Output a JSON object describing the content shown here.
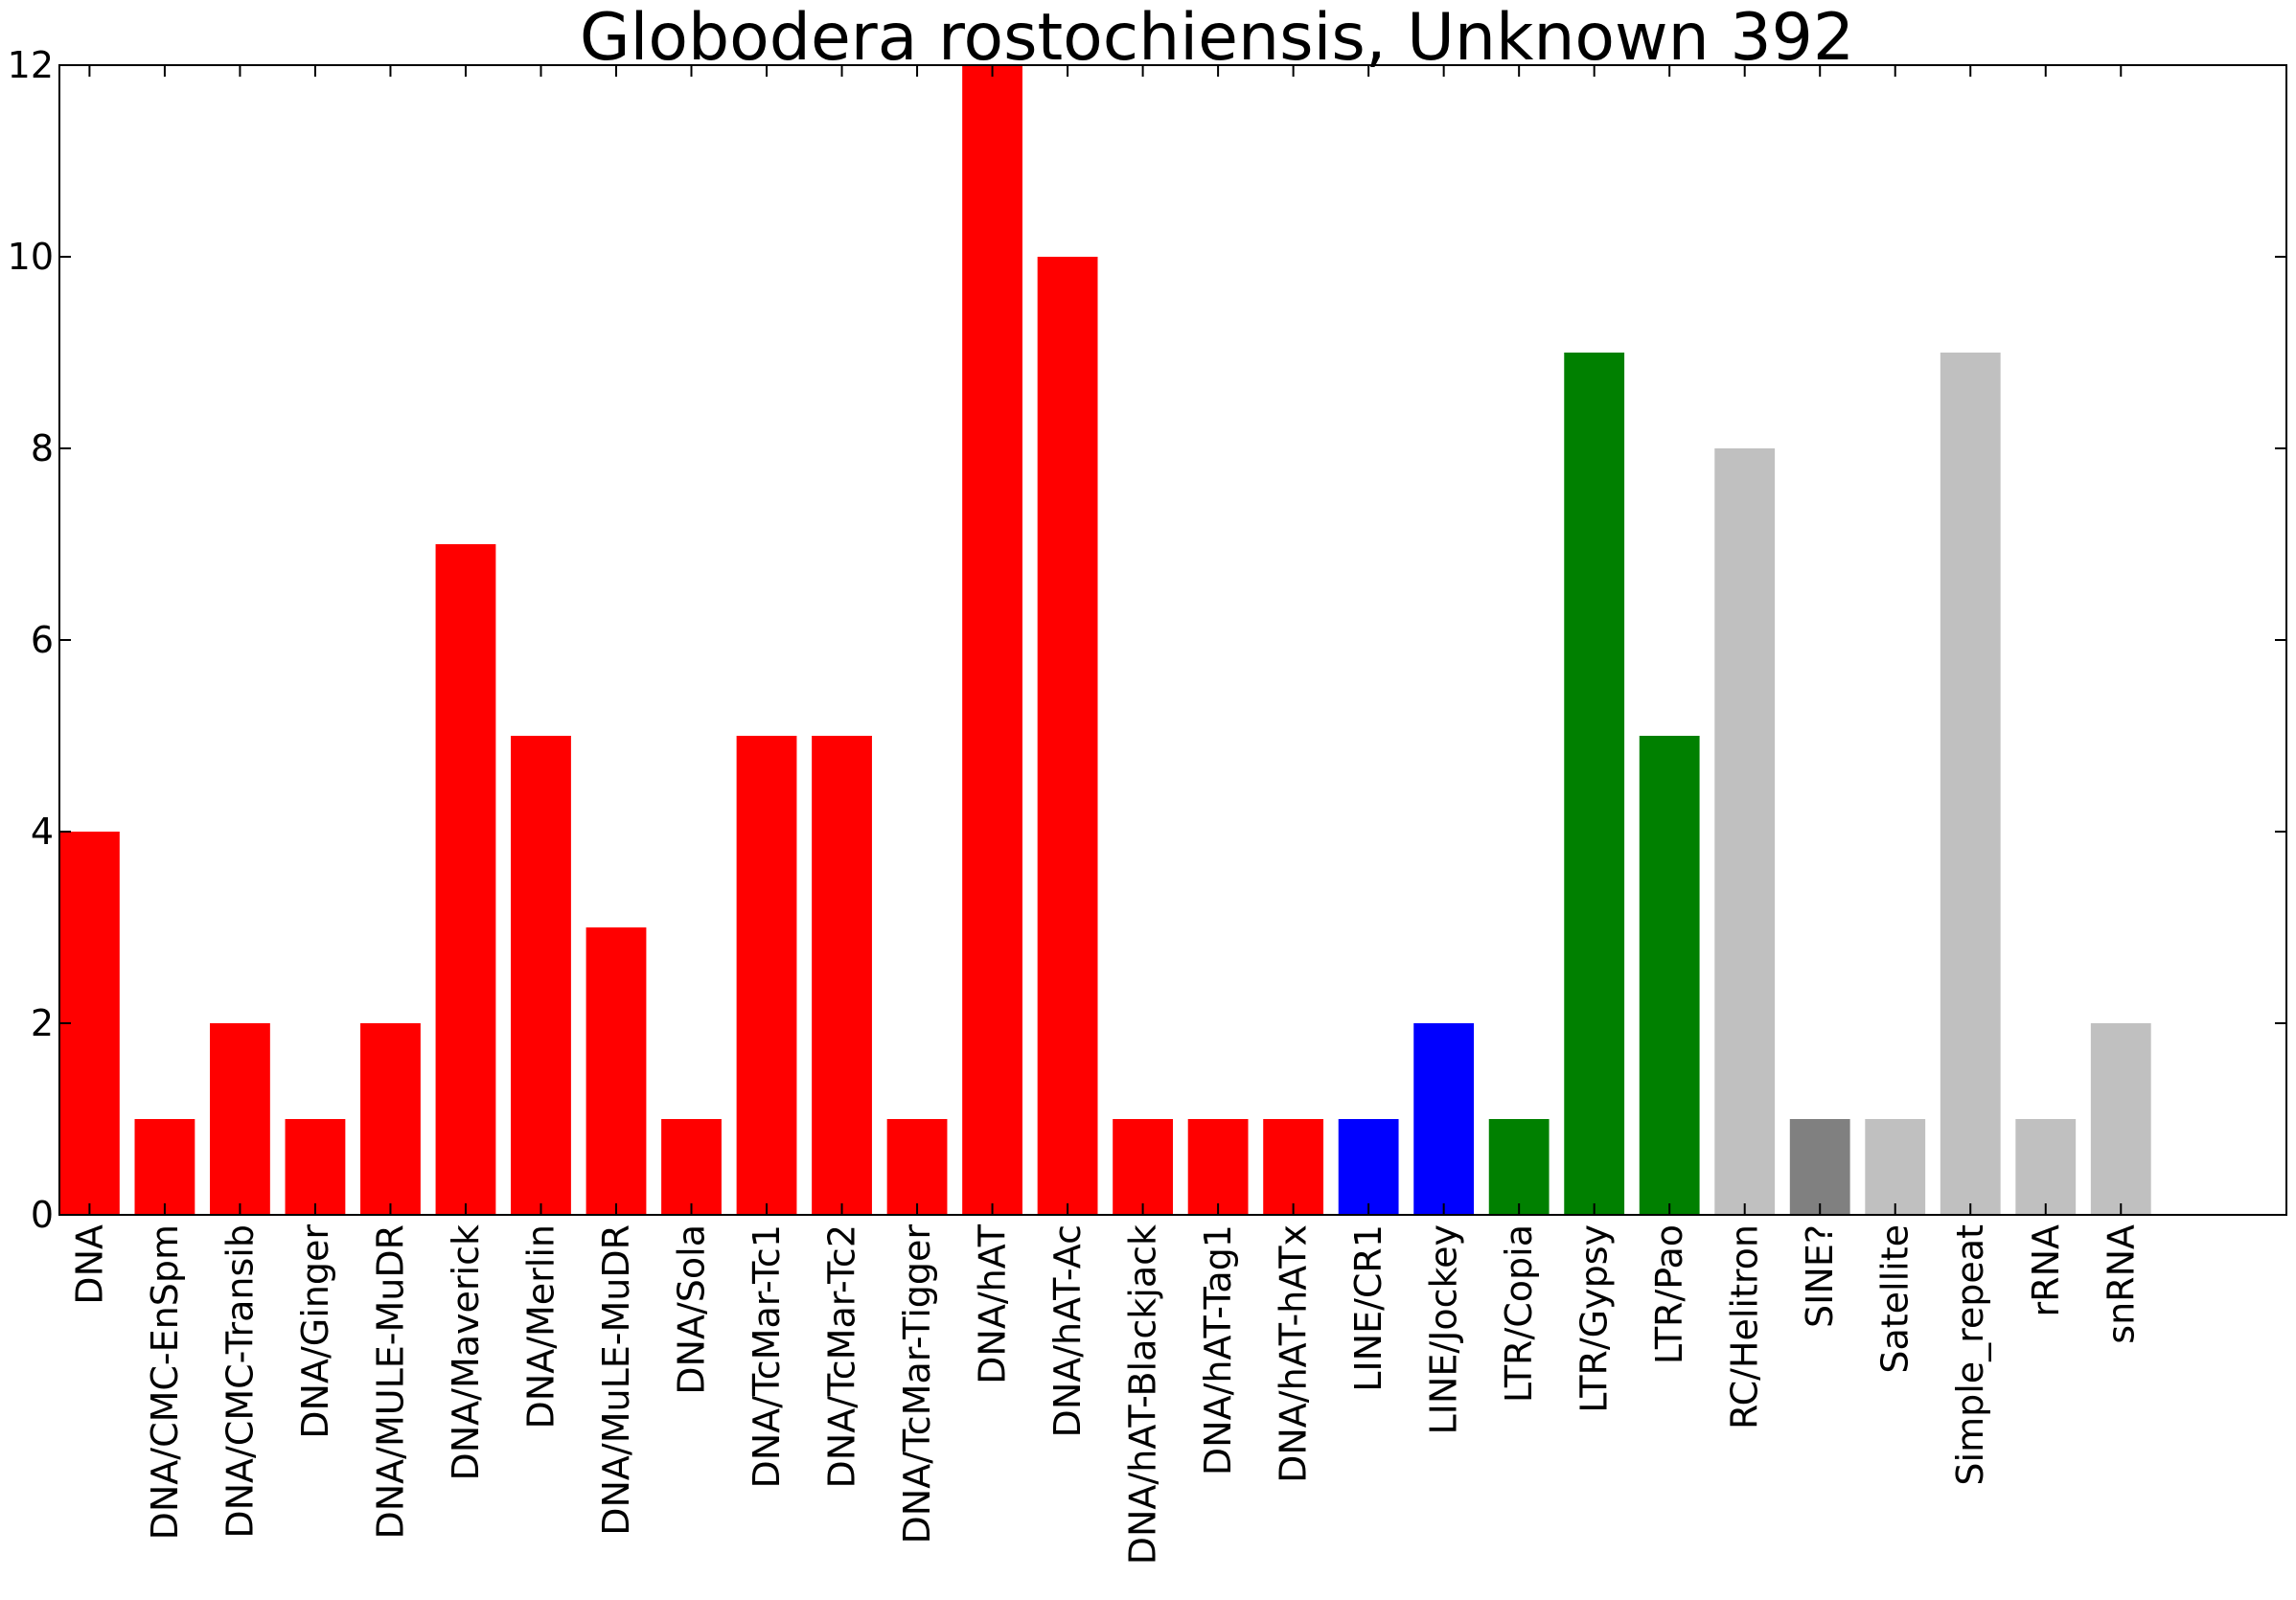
{
  "chart_data": {
    "type": "bar",
    "title": "Globodera rostochiensis, Unknown 392",
    "xlabel": "",
    "ylabel": "",
    "ylim": [
      0,
      12
    ],
    "xlim": [
      0,
      29.6
    ],
    "yticks": [
      "0",
      "2",
      "4",
      "6",
      "8",
      "10",
      "12"
    ],
    "grid": false,
    "legend": "none",
    "categories": [
      "DNA",
      "DNA/CMC-EnSpm",
      "DNA/CMC-Transib",
      "DNA/Ginger",
      "DNA/MULE-MuDR",
      "DNA/Maverick",
      "DNA/Merlin",
      "DNA/MuLE-MuDR",
      "DNA/Sola",
      "DNA/TcMar-Tc1",
      "DNA/TcMar-Tc2",
      "DNA/TcMar-Tigger",
      "DNA/hAT",
      "DNA/hAT-Ac",
      "DNA/hAT-Blackjack",
      "DNA/hAT-Tag1",
      "DNA/hAT-hATx",
      "LINE/CR1",
      "LINE/Jockey",
      "LTR/Copia",
      "LTR/Gypsy",
      "LTR/Pao",
      "RC/Helitron",
      "SINE?",
      "Satellite",
      "Simple_repeat",
      "rRNA",
      "snRNA"
    ],
    "values": [
      4,
      1,
      2,
      1,
      2,
      7,
      5,
      3,
      1,
      5,
      5,
      1,
      12,
      10,
      1,
      1,
      1,
      1,
      2,
      1,
      9,
      5,
      8,
      1,
      1,
      9,
      1,
      2
    ],
    "colors": [
      "#ff0000",
      "#ff0000",
      "#ff0000",
      "#ff0000",
      "#ff0000",
      "#ff0000",
      "#ff0000",
      "#ff0000",
      "#ff0000",
      "#ff0000",
      "#ff0000",
      "#ff0000",
      "#ff0000",
      "#ff0000",
      "#ff0000",
      "#ff0000",
      "#ff0000",
      "#0000ff",
      "#0000ff",
      "#008000",
      "#008000",
      "#008000",
      "#c0c0c0",
      "#808080",
      "#c0c0c0",
      "#c0c0c0",
      "#c0c0c0",
      "#c0c0c0"
    ]
  }
}
